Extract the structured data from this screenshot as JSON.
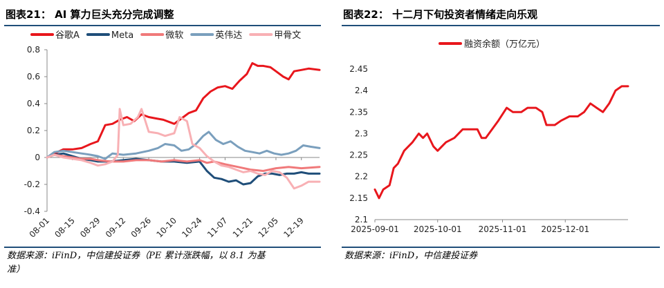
{
  "left_panel": {
    "figure_title": "图表21：  AI 算力巨头充分完成调整",
    "source_line1": "数据来源：iFinD，中信建投证券（PE 累计涨跌幅，以 8.1 为基",
    "source_line2": "准）"
  },
  "right_panel": {
    "figure_title": "图表22：  十二月下旬投资者情绪走向乐观",
    "source_line1": "数据来源：iFinD，中信建投证券"
  },
  "chart_data": [
    {
      "type": "line",
      "title": "",
      "xlabel": "",
      "ylabel": "",
      "ylim": [
        -0.4,
        0.8
      ],
      "yticks": [
        "0.8",
        "0.6",
        "0.4",
        "0.2",
        "0",
        "-0.2",
        "-0.4"
      ],
      "xticks": [
        "08-01",
        "08-15",
        "08-29",
        "09-12",
        "09-26",
        "10-10",
        "10-24",
        "11-07",
        "11-21",
        "12-05",
        "12-19"
      ],
      "x_start": "08-01",
      "x_end": "12-29",
      "legend_position": "top",
      "series": [
        {
          "name": "谷歌A",
          "color": "#e8161c",
          "points": [
            [
              "08-01",
              0.0
            ],
            [
              "08-05",
              0.03
            ],
            [
              "08-10",
              0.06
            ],
            [
              "08-15",
              0.06
            ],
            [
              "08-20",
              0.07
            ],
            [
              "08-25",
              0.1
            ],
            [
              "08-29",
              0.12
            ],
            [
              "09-02",
              0.24
            ],
            [
              "09-06",
              0.25
            ],
            [
              "09-10",
              0.28
            ],
            [
              "09-14",
              0.3
            ],
            [
              "09-18",
              0.27
            ],
            [
              "09-22",
              0.32
            ],
            [
              "09-26",
              0.3
            ],
            [
              "09-30",
              0.29
            ],
            [
              "10-04",
              0.28
            ],
            [
              "10-08",
              0.26
            ],
            [
              "10-10",
              0.25
            ],
            [
              "10-14",
              0.29
            ],
            [
              "10-18",
              0.33
            ],
            [
              "10-22",
              0.35
            ],
            [
              "10-26",
              0.44
            ],
            [
              "10-30",
              0.49
            ],
            [
              "11-03",
              0.52
            ],
            [
              "11-07",
              0.53
            ],
            [
              "11-11",
              0.51
            ],
            [
              "11-15",
              0.57
            ],
            [
              "11-19",
              0.62
            ],
            [
              "11-22",
              0.7
            ],
            [
              "11-25",
              0.68
            ],
            [
              "11-28",
              0.68
            ],
            [
              "12-02",
              0.67
            ],
            [
              "12-05",
              0.64
            ],
            [
              "12-09",
              0.6
            ],
            [
              "12-12",
              0.58
            ],
            [
              "12-15",
              0.64
            ],
            [
              "12-19",
              0.65
            ],
            [
              "12-23",
              0.66
            ],
            [
              "12-29",
              0.65
            ]
          ]
        },
        {
          "name": "Meta",
          "color": "#1f4e79",
          "points": [
            [
              "08-01",
              0.0
            ],
            [
              "08-05",
              0.02
            ],
            [
              "08-10",
              0.03
            ],
            [
              "08-15",
              0.01
            ],
            [
              "08-20",
              -0.01
            ],
            [
              "08-25",
              -0.02
            ],
            [
              "08-29",
              -0.03
            ],
            [
              "09-05",
              -0.03
            ],
            [
              "09-12",
              -0.02
            ],
            [
              "09-19",
              -0.01
            ],
            [
              "09-26",
              -0.02
            ],
            [
              "10-03",
              -0.03
            ],
            [
              "10-10",
              -0.03
            ],
            [
              "10-17",
              -0.04
            ],
            [
              "10-24",
              -0.03
            ],
            [
              "10-28",
              -0.1
            ],
            [
              "11-01",
              -0.15
            ],
            [
              "11-05",
              -0.16
            ],
            [
              "11-09",
              -0.18
            ],
            [
              "11-13",
              -0.17
            ],
            [
              "11-17",
              -0.2
            ],
            [
              "11-21",
              -0.19
            ],
            [
              "11-25",
              -0.14
            ],
            [
              "11-29",
              -0.12
            ],
            [
              "12-03",
              -0.12
            ],
            [
              "12-07",
              -0.13
            ],
            [
              "12-11",
              -0.12
            ],
            [
              "12-15",
              -0.12
            ],
            [
              "12-19",
              -0.11
            ],
            [
              "12-23",
              -0.12
            ],
            [
              "12-29",
              -0.12
            ]
          ]
        },
        {
          "name": "微软",
          "color": "#f0797a",
          "points": [
            [
              "08-01",
              0.0
            ],
            [
              "08-05",
              0.02
            ],
            [
              "08-10",
              0.01
            ],
            [
              "08-15",
              0.0
            ],
            [
              "08-20",
              -0.01
            ],
            [
              "08-25",
              -0.01
            ],
            [
              "08-29",
              -0.02
            ],
            [
              "09-05",
              -0.03
            ],
            [
              "09-12",
              -0.03
            ],
            [
              "09-19",
              -0.02
            ],
            [
              "09-26",
              -0.02
            ],
            [
              "10-03",
              -0.03
            ],
            [
              "10-10",
              -0.02
            ],
            [
              "10-17",
              -0.03
            ],
            [
              "10-24",
              -0.02
            ],
            [
              "10-28",
              -0.04
            ],
            [
              "11-01",
              -0.03
            ],
            [
              "11-07",
              -0.05
            ],
            [
              "11-14",
              -0.07
            ],
            [
              "11-21",
              -0.09
            ],
            [
              "11-28",
              -0.1
            ],
            [
              "12-05",
              -0.08
            ],
            [
              "12-12",
              -0.07
            ],
            [
              "12-19",
              -0.08
            ],
            [
              "12-29",
              -0.07
            ]
          ]
        },
        {
          "name": "英伟达",
          "color": "#7a9fbd",
          "points": [
            [
              "08-01",
              0.0
            ],
            [
              "08-05",
              0.04
            ],
            [
              "08-10",
              0.05
            ],
            [
              "08-15",
              0.04
            ],
            [
              "08-20",
              0.03
            ],
            [
              "08-25",
              0.02
            ],
            [
              "08-29",
              0.01
            ],
            [
              "09-02",
              -0.01
            ],
            [
              "09-06",
              0.03
            ],
            [
              "09-12",
              0.02
            ],
            [
              "09-19",
              0.03
            ],
            [
              "09-26",
              0.05
            ],
            [
              "10-01",
              0.07
            ],
            [
              "10-05",
              0.1
            ],
            [
              "10-10",
              0.09
            ],
            [
              "10-14",
              0.05
            ],
            [
              "10-18",
              0.06
            ],
            [
              "10-22",
              0.1
            ],
            [
              "10-26",
              0.16
            ],
            [
              "10-29",
              0.19
            ],
            [
              "11-02",
              0.13
            ],
            [
              "11-06",
              0.1
            ],
            [
              "11-10",
              0.12
            ],
            [
              "11-14",
              0.08
            ],
            [
              "11-18",
              0.05
            ],
            [
              "11-22",
              0.04
            ],
            [
              "11-26",
              0.03
            ],
            [
              "11-30",
              0.05
            ],
            [
              "12-04",
              0.03
            ],
            [
              "12-08",
              0.02
            ],
            [
              "12-12",
              0.03
            ],
            [
              "12-16",
              0.05
            ],
            [
              "12-20",
              0.09
            ],
            [
              "12-24",
              0.08
            ],
            [
              "12-29",
              0.07
            ]
          ]
        },
        {
          "name": "甲骨文",
          "color": "#f8b0b4",
          "points": [
            [
              "08-01",
              0.0
            ],
            [
              "08-05",
              0.02
            ],
            [
              "08-10",
              0.0
            ],
            [
              "08-15",
              -0.01
            ],
            [
              "08-20",
              -0.02
            ],
            [
              "08-25",
              -0.04
            ],
            [
              "08-29",
              -0.06
            ],
            [
              "09-02",
              -0.05
            ],
            [
              "09-06",
              -0.03
            ],
            [
              "09-09",
              0.02
            ],
            [
              "09-10",
              0.36
            ],
            [
              "09-12",
              0.24
            ],
            [
              "09-16",
              0.25
            ],
            [
              "09-20",
              0.3
            ],
            [
              "09-22",
              0.36
            ],
            [
              "09-26",
              0.19
            ],
            [
              "10-01",
              0.18
            ],
            [
              "10-05",
              0.16
            ],
            [
              "10-10",
              0.18
            ],
            [
              "10-13",
              0.3
            ],
            [
              "10-17",
              0.27
            ],
            [
              "10-20",
              0.1
            ],
            [
              "10-24",
              0.07
            ],
            [
              "10-28",
              0.01
            ],
            [
              "11-01",
              -0.03
            ],
            [
              "11-05",
              -0.06
            ],
            [
              "11-09",
              -0.07
            ],
            [
              "11-13",
              -0.09
            ],
            [
              "11-17",
              -0.11
            ],
            [
              "11-21",
              -0.1
            ],
            [
              "11-25",
              -0.12
            ],
            [
              "11-29",
              -0.13
            ],
            [
              "12-03",
              -0.1
            ],
            [
              "12-07",
              -0.11
            ],
            [
              "12-11",
              -0.15
            ],
            [
              "12-15",
              -0.23
            ],
            [
              "12-19",
              -0.21
            ],
            [
              "12-23",
              -0.18
            ],
            [
              "12-29",
              -0.18
            ]
          ]
        }
      ]
    },
    {
      "type": "line",
      "title": "",
      "xlabel": "",
      "ylabel": "",
      "ylim": [
        2.1,
        2.45
      ],
      "yticks": [
        "2.45",
        "2.4",
        "2.35",
        "2.3",
        "2.25",
        "2.2",
        "2.15",
        "2.1"
      ],
      "xticks": [
        "2025-09-01",
        "2025-10-01",
        "2025-11-01",
        "2025-12-01"
      ],
      "x_start": "2025-09-01",
      "x_end": "2025-12-31",
      "legend_position": "top",
      "series": [
        {
          "name": "融资余额（万亿元）",
          "color": "#e8161c",
          "points": [
            [
              "2025-09-01",
              2.17
            ],
            [
              "2025-09-03",
              2.15
            ],
            [
              "2025-09-05",
              2.17
            ],
            [
              "2025-09-08",
              2.18
            ],
            [
              "2025-09-10",
              2.22
            ],
            [
              "2025-09-12",
              2.23
            ],
            [
              "2025-09-15",
              2.26
            ],
            [
              "2025-09-17",
              2.27
            ],
            [
              "2025-09-19",
              2.28
            ],
            [
              "2025-09-22",
              2.3
            ],
            [
              "2025-09-24",
              2.29
            ],
            [
              "2025-09-26",
              2.3
            ],
            [
              "2025-09-29",
              2.27
            ],
            [
              "2025-10-01",
              2.26
            ],
            [
              "2025-10-05",
              2.28
            ],
            [
              "2025-10-09",
              2.29
            ],
            [
              "2025-10-13",
              2.31
            ],
            [
              "2025-10-17",
              2.31
            ],
            [
              "2025-10-20",
              2.31
            ],
            [
              "2025-10-22",
              2.29
            ],
            [
              "2025-10-24",
              2.29
            ],
            [
              "2025-10-27",
              2.31
            ],
            [
              "2025-10-30",
              2.33
            ],
            [
              "2025-11-03",
              2.36
            ],
            [
              "2025-11-06",
              2.35
            ],
            [
              "2025-11-10",
              2.35
            ],
            [
              "2025-11-13",
              2.36
            ],
            [
              "2025-11-17",
              2.36
            ],
            [
              "2025-11-20",
              2.35
            ],
            [
              "2025-11-22",
              2.32
            ],
            [
              "2025-11-26",
              2.32
            ],
            [
              "2025-11-29",
              2.33
            ],
            [
              "2025-12-03",
              2.34
            ],
            [
              "2025-12-07",
              2.34
            ],
            [
              "2025-12-10",
              2.35
            ],
            [
              "2025-12-13",
              2.37
            ],
            [
              "2025-12-16",
              2.36
            ],
            [
              "2025-12-19",
              2.35
            ],
            [
              "2025-12-22",
              2.37
            ],
            [
              "2025-12-25",
              2.4
            ],
            [
              "2025-12-28",
              2.41
            ],
            [
              "2025-12-31",
              2.41
            ]
          ]
        }
      ]
    }
  ]
}
